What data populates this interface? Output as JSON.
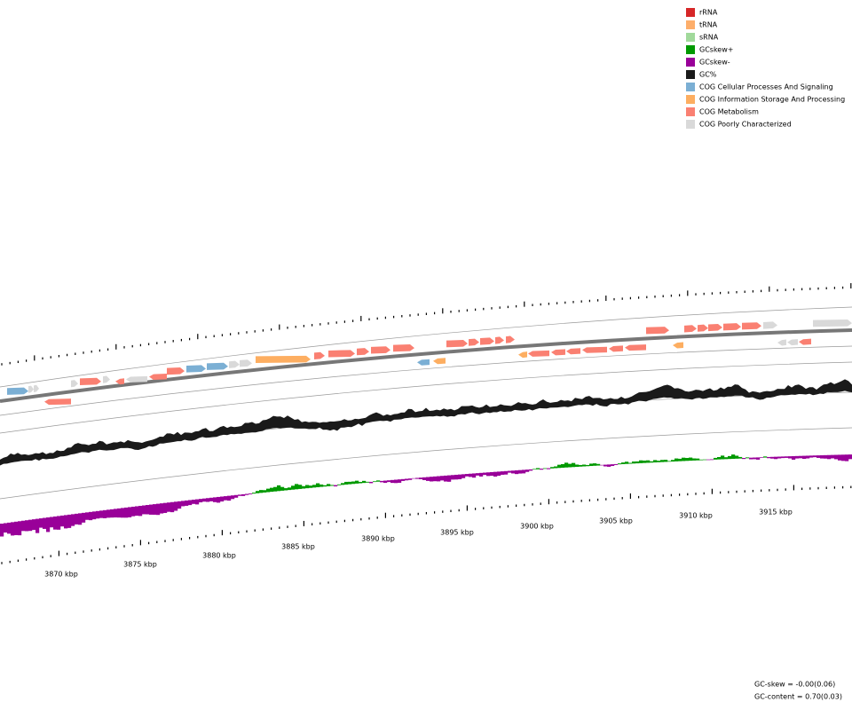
{
  "legend": [
    {
      "label": "rRNA",
      "color": "#d62728"
    },
    {
      "label": "tRNA",
      "color": "#fdae6b"
    },
    {
      "label": "sRNA",
      "color": "#a1d99b"
    },
    {
      "label": "GCskew+",
      "color": "#009900"
    },
    {
      "label": "GCskew-",
      "color": "#990099"
    },
    {
      "label": "GC%",
      "color": "#1a1a1a"
    },
    {
      "label": "COG Cellular Processes And Signaling",
      "color": "#7bafd4"
    },
    {
      "label": "COG Information Storage And Processing",
      "color": "#fdae61"
    },
    {
      "label": "COG Metabolism",
      "color": "#fa8072"
    },
    {
      "label": "COG Poorly Characterized",
      "color": "#d9d9d9"
    }
  ],
  "scale_labels": [
    "3870 kbp",
    "3875 kbp",
    "3880 kbp",
    "3885 kbp",
    "3890 kbp",
    "3895 kbp",
    "3900 kbp",
    "3905 kbp",
    "3910 kbp",
    "3915 kbp"
  ],
  "footer": {
    "gc_skew": "GC-skew = -0.00(0.06)",
    "gc_content": "GC-content = 0.70(0.03)"
  }
}
